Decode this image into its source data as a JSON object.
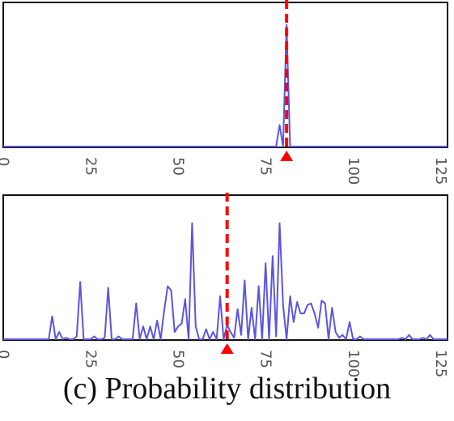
{
  "caption": "(c) Probability distribution",
  "chart_data": [
    {
      "type": "line",
      "x_ticks": [
        0,
        25,
        50,
        75,
        100,
        125
      ],
      "xlim": [
        0,
        127
      ],
      "ylim": [
        0,
        1
      ],
      "line_color": "#5a55e0",
      "marker": {
        "x": 81,
        "color": "#ff0000",
        "style": "dashed vertical line with triangle"
      },
      "points": [
        [
          0,
          0
        ],
        [
          78,
          0
        ],
        [
          79,
          0.15
        ],
        [
          80,
          0
        ],
        [
          81,
          0.85
        ],
        [
          82,
          0
        ],
        [
          127,
          0
        ]
      ]
    },
    {
      "type": "line",
      "x_ticks": [
        0,
        25,
        50,
        75,
        100,
        125
      ],
      "xlim": [
        0,
        127
      ],
      "ylim": [
        0,
        1
      ],
      "line_color": "#5a55e0",
      "marker": {
        "x": 64,
        "color": "#ff0000",
        "style": "dashed vertical line with triangle"
      },
      "points": [
        [
          0,
          0
        ],
        [
          13,
          0
        ],
        [
          14,
          0.16
        ],
        [
          15,
          0
        ],
        [
          16,
          0.05
        ],
        [
          17,
          0
        ],
        [
          18,
          0.01
        ],
        [
          19,
          0
        ],
        [
          20,
          0
        ],
        [
          21,
          0.02
        ],
        [
          22,
          0.4
        ],
        [
          23,
          0
        ],
        [
          24,
          0
        ],
        [
          25,
          0
        ],
        [
          26,
          0.02
        ],
        [
          27,
          0
        ],
        [
          28,
          0
        ],
        [
          29,
          0.01
        ],
        [
          30,
          0.36
        ],
        [
          31,
          0
        ],
        [
          32,
          0
        ],
        [
          33,
          0.02
        ],
        [
          34,
          0
        ],
        [
          35,
          0
        ],
        [
          36,
          0
        ],
        [
          37,
          0
        ],
        [
          38,
          0.25
        ],
        [
          39,
          0
        ],
        [
          40,
          0.09
        ],
        [
          41,
          0
        ],
        [
          42,
          0.09
        ],
        [
          43,
          0
        ],
        [
          44,
          0.13
        ],
        [
          45,
          0
        ],
        [
          46,
          0.2
        ],
        [
          47,
          0.37
        ],
        [
          48,
          0.34
        ],
        [
          49,
          0.05
        ],
        [
          50,
          0.09
        ],
        [
          51,
          0.11
        ],
        [
          52,
          0.28
        ],
        [
          53,
          0
        ],
        [
          54,
          0.81
        ],
        [
          55,
          0.09
        ],
        [
          56,
          0
        ],
        [
          57,
          0
        ],
        [
          58,
          0.07
        ],
        [
          59,
          0
        ],
        [
          60,
          0.05
        ],
        [
          61,
          0
        ],
        [
          62,
          0.3
        ],
        [
          63,
          0
        ],
        [
          64,
          0.1
        ],
        [
          65,
          0.05
        ],
        [
          66,
          0.01
        ],
        [
          67,
          0.21
        ],
        [
          68,
          0.03
        ],
        [
          69,
          0.41
        ],
        [
          70,
          0
        ],
        [
          71,
          0.22
        ],
        [
          72,
          0
        ],
        [
          73,
          0.37
        ],
        [
          74,
          0
        ],
        [
          75,
          0.53
        ],
        [
          76,
          0
        ],
        [
          77,
          0.58
        ],
        [
          78,
          0.02
        ],
        [
          79,
          0.81
        ],
        [
          80,
          0.24
        ],
        [
          81,
          0
        ],
        [
          82,
          0.3
        ],
        [
          83,
          0.12
        ],
        [
          84,
          0.26
        ],
        [
          85,
          0.18
        ],
        [
          86,
          0.18
        ],
        [
          87,
          0.24
        ],
        [
          88,
          0.25
        ],
        [
          89,
          0.18
        ],
        [
          90,
          0.08
        ],
        [
          91,
          0.27
        ],
        [
          92,
          0.25
        ],
        [
          93,
          0
        ],
        [
          94,
          0.22
        ],
        [
          95,
          0.05
        ],
        [
          96,
          0.01
        ],
        [
          97,
          0.03
        ],
        [
          98,
          0
        ],
        [
          99,
          0.12
        ],
        [
          100,
          0
        ],
        [
          101,
          0
        ],
        [
          102,
          0.02
        ],
        [
          103,
          0
        ],
        [
          113,
          0
        ],
        [
          114,
          0.01
        ],
        [
          115,
          0
        ],
        [
          116,
          0.03
        ],
        [
          117,
          0
        ],
        [
          118,
          0
        ],
        [
          119,
          0
        ],
        [
          120,
          0.01
        ],
        [
          121,
          0
        ],
        [
          122,
          0.03
        ],
        [
          123,
          0
        ],
        [
          127,
          0
        ]
      ]
    }
  ]
}
